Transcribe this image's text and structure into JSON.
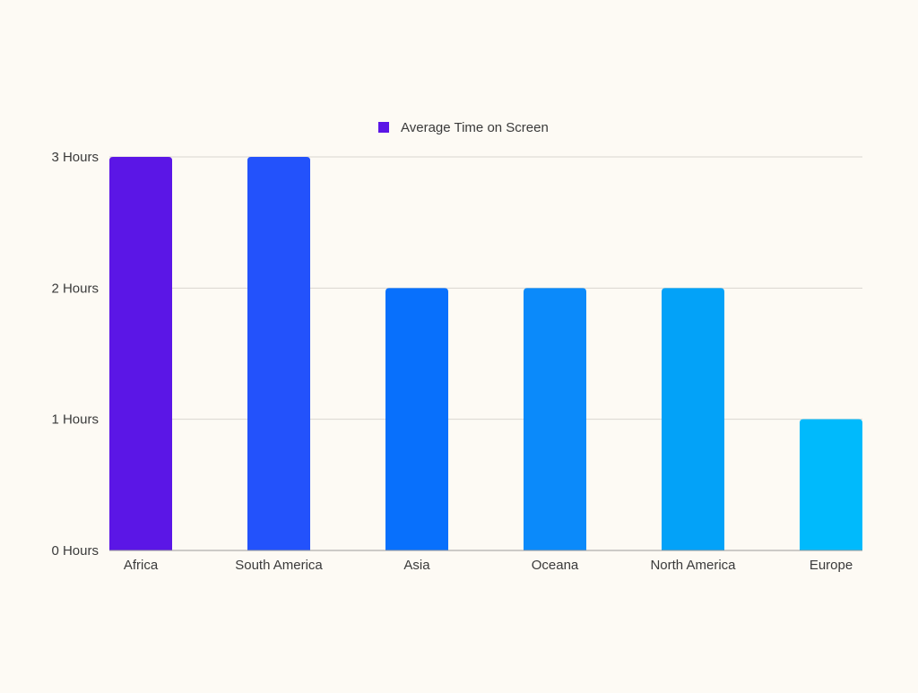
{
  "chart_data": {
    "type": "bar",
    "categories": [
      "Africa",
      "South America",
      "Asia",
      "Oceana",
      "North America",
      "Europe"
    ],
    "series": [
      {
        "name": "Average Time on Screen",
        "values": [
          3,
          3,
          2,
          2,
          2,
          1
        ]
      }
    ],
    "y_ticks": [
      0,
      1,
      2,
      3
    ],
    "y_tick_labels": [
      "0 Hours",
      "1 Hours",
      "2 Hours",
      "3 Hours"
    ],
    "ylim": [
      0,
      3
    ],
    "grid": true,
    "legend_position": "top-center",
    "legend_color": "#5B16E6",
    "bar_colors": [
      "#5B16E6",
      "#2352FB",
      "#0870FC",
      "#0B8AFA",
      "#03A2F8",
      "#00BAFC"
    ],
    "title": "",
    "xlabel": "",
    "ylabel": ""
  }
}
